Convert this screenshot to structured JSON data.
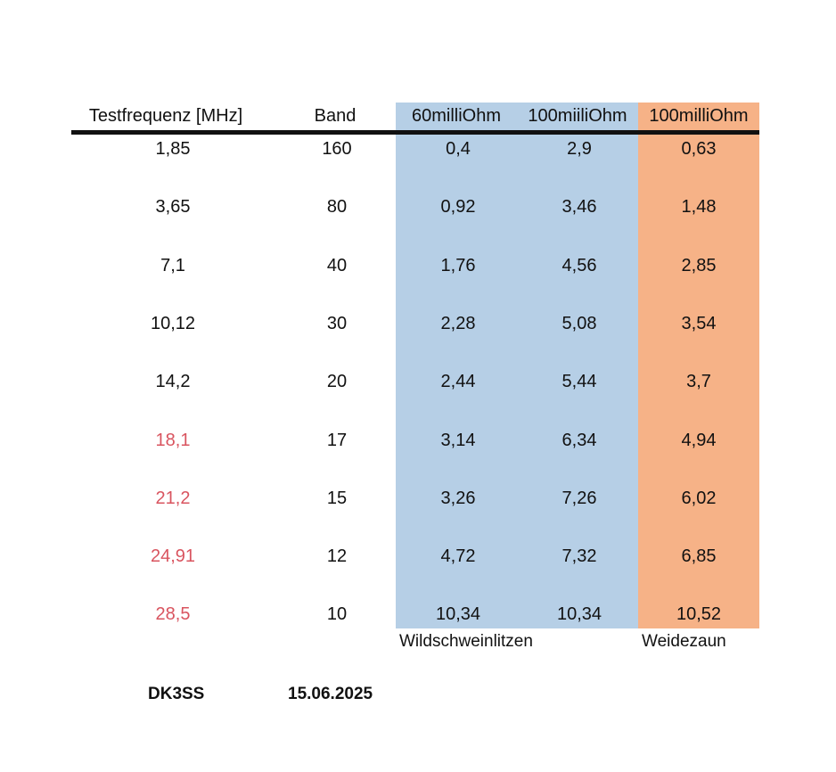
{
  "table": {
    "headers": [
      "Testfrequenz [MHz]",
      "Band",
      "60milliOhm",
      "100miiliOhm",
      "100milliOhm"
    ],
    "rows": [
      {
        "freq": "1,85",
        "band": "160",
        "a": "0,4",
        "b": "2,9",
        "c": "0,63",
        "highlight": false
      },
      {
        "freq": "3,65",
        "band": "80",
        "a": "0,92",
        "b": "3,46",
        "c": "1,48",
        "highlight": false
      },
      {
        "freq": "7,1",
        "band": "40",
        "a": "1,76",
        "b": "4,56",
        "c": "2,85",
        "highlight": false
      },
      {
        "freq": "10,12",
        "band": "30",
        "a": "2,28",
        "b": "5,08",
        "c": "3,54",
        "highlight": false
      },
      {
        "freq": "14,2",
        "band": "20",
        "a": "2,44",
        "b": "5,44",
        "c": "3,7",
        "highlight": false
      },
      {
        "freq": "18,1",
        "band": "17",
        "a": "3,14",
        "b": "6,34",
        "c": "4,94",
        "highlight": true
      },
      {
        "freq": "21,2",
        "band": "15",
        "a": "3,26",
        "b": "7,26",
        "c": "6,02",
        "highlight": true
      },
      {
        "freq": "24,91",
        "band": "12",
        "a": "4,72",
        "b": "7,32",
        "c": "6,85",
        "highlight": true
      },
      {
        "freq": "28,5",
        "band": "10",
        "a": "10,34",
        "b": "10,34",
        "c": "10,52",
        "highlight": true
      }
    ],
    "captions": {
      "blue": "Wildschweinlitzen",
      "orange": "Weidezaun"
    }
  },
  "footer": {
    "callsign": "DK3SS",
    "date": "15.06.2025"
  },
  "colors": {
    "blue_band": "#b6cfe6",
    "orange_band": "#f6b287",
    "highlight_text": "#d9545f"
  }
}
